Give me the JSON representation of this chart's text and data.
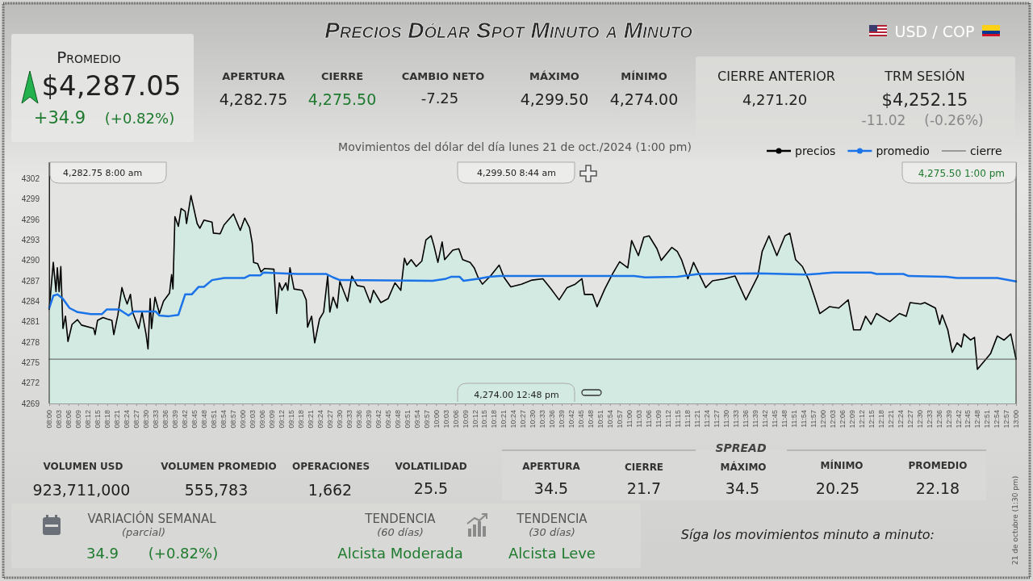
{
  "chart_data": {
    "type": "line",
    "title": "Precios Dólar Spot Minuto a Minuto",
    "subtitle": "Movimientos del dólar del día lunes 21 de oct./2024 (1:00 pm)",
    "xlim": [
      8,
      13
    ],
    "ylim": [
      4269,
      4304.4
    ],
    "yticks": [
      4269,
      4272,
      4275,
      4278,
      4281,
      4284,
      4287,
      4290,
      4293,
      4296,
      4299,
      4302
    ],
    "xticks": [
      {
        "value": 8,
        "label": "08:00"
      },
      {
        "value": 8.05,
        "label": "08:03"
      },
      {
        "value": 8.1,
        "label": "08:06"
      },
      {
        "value": 8.15,
        "label": "08:09"
      },
      {
        "value": 8.2,
        "label": "08:12"
      },
      {
        "value": 8.25,
        "label": "08:15"
      },
      {
        "value": 8.3,
        "label": "08:18"
      },
      {
        "value": 8.35,
        "label": "08:21"
      },
      {
        "value": 8.4,
        "label": "08:24"
      },
      {
        "value": 8.45,
        "label": "08:27"
      },
      {
        "value": 8.5,
        "label": "08:30"
      },
      {
        "value": 8.55,
        "label": "08:33"
      },
      {
        "value": 8.6,
        "label": "08:36"
      },
      {
        "value": 8.65,
        "label": "08:39"
      },
      {
        "value": 8.7,
        "label": "08:42"
      },
      {
        "value": 8.75,
        "label": "08:45"
      },
      {
        "value": 8.8,
        "label": "08:48"
      },
      {
        "value": 8.85,
        "label": "08:51"
      },
      {
        "value": 8.9,
        "label": "08:54"
      },
      {
        "value": 8.95,
        "label": "08:57"
      },
      {
        "value": 9,
        "label": "09:00"
      },
      {
        "value": 9.05,
        "label": "09:03"
      },
      {
        "value": 9.1,
        "label": "09:06"
      },
      {
        "value": 9.15,
        "label": "09:09"
      },
      {
        "value": 9.2,
        "label": "09:12"
      },
      {
        "value": 9.25,
        "label": "09:15"
      },
      {
        "value": 9.3,
        "label": "09:18"
      },
      {
        "value": 9.35,
        "label": "09:21"
      },
      {
        "value": 9.4,
        "label": "09:24"
      },
      {
        "value": 9.45,
        "label": "09:27"
      },
      {
        "value": 9.5,
        "label": "09:30"
      },
      {
        "value": 9.55,
        "label": "09:33"
      },
      {
        "value": 9.6,
        "label": "09:36"
      },
      {
        "value": 9.65,
        "label": "09:39"
      },
      {
        "value": 9.7,
        "label": "09:42"
      },
      {
        "value": 9.75,
        "label": "09:45"
      },
      {
        "value": 9.8,
        "label": "09:48"
      },
      {
        "value": 9.85,
        "label": "09:51"
      },
      {
        "value": 9.9,
        "label": "09:54"
      },
      {
        "value": 9.95,
        "label": "09:57"
      },
      {
        "value": 10,
        "label": "10:00"
      },
      {
        "value": 10.05,
        "label": "10:03"
      },
      {
        "value": 10.1,
        "label": "10:06"
      },
      {
        "value": 10.15,
        "label": "10:09"
      },
      {
        "value": 10.2,
        "label": "10:12"
      },
      {
        "value": 10.25,
        "label": "10:15"
      },
      {
        "value": 10.3,
        "label": "10:18"
      },
      {
        "value": 10.35,
        "label": "10:21"
      },
      {
        "value": 10.4,
        "label": "10:24"
      },
      {
        "value": 10.45,
        "label": "10:27"
      },
      {
        "value": 10.5,
        "label": "10:30"
      },
      {
        "value": 10.55,
        "label": "10:33"
      },
      {
        "value": 10.6,
        "label": "10:36"
      },
      {
        "value": 10.65,
        "label": "10:39"
      },
      {
        "value": 10.7,
        "label": "10:42"
      },
      {
        "value": 10.75,
        "label": "10:45"
      },
      {
        "value": 10.8,
        "label": "10:48"
      },
      {
        "value": 10.85,
        "label": "10:51"
      },
      {
        "value": 10.9,
        "label": "10:54"
      },
      {
        "value": 10.95,
        "label": "10:57"
      },
      {
        "value": 11,
        "label": "11:00"
      },
      {
        "value": 11.05,
        "label": "11:03"
      },
      {
        "value": 11.1,
        "label": "11:06"
      },
      {
        "value": 11.15,
        "label": "11:09"
      },
      {
        "value": 11.2,
        "label": "11:12"
      },
      {
        "value": 11.25,
        "label": "11:15"
      },
      {
        "value": 11.3,
        "label": "11:18"
      },
      {
        "value": 11.35,
        "label": "11:21"
      },
      {
        "value": 11.4,
        "label": "11:24"
      },
      {
        "value": 11.45,
        "label": "11:27"
      },
      {
        "value": 11.5,
        "label": "11:30"
      },
      {
        "value": 11.55,
        "label": "11:33"
      },
      {
        "value": 11.6,
        "label": "11:36"
      },
      {
        "value": 11.65,
        "label": "11:39"
      },
      {
        "value": 11.7,
        "label": "11:42"
      },
      {
        "value": 11.75,
        "label": "11:45"
      },
      {
        "value": 11.8,
        "label": "11:48"
      },
      {
        "value": 11.85,
        "label": "11:51"
      },
      {
        "value": 11.9,
        "label": "11:54"
      },
      {
        "value": 11.95,
        "label": "11:57"
      },
      {
        "value": 12,
        "label": "12:00"
      },
      {
        "value": 12.05,
        "label": "12:03"
      },
      {
        "value": 12.1,
        "label": "12:06"
      },
      {
        "value": 12.15,
        "label": "12:09"
      },
      {
        "value": 12.2,
        "label": "12:12"
      },
      {
        "value": 12.25,
        "label": "12:15"
      },
      {
        "value": 12.3,
        "label": "12:18"
      },
      {
        "value": 12.35,
        "label": "12:21"
      },
      {
        "value": 12.4,
        "label": "12:24"
      },
      {
        "value": 12.45,
        "label": "12:27"
      },
      {
        "value": 12.5,
        "label": "12:30"
      },
      {
        "value": 12.55,
        "label": "12:33"
      },
      {
        "value": 12.6,
        "label": "12:36"
      },
      {
        "value": 12.65,
        "label": "12:39"
      },
      {
        "value": 12.7,
        "label": "12:42"
      },
      {
        "value": 12.75,
        "label": "12:45"
      },
      {
        "value": 12.8,
        "label": "12:48"
      },
      {
        "value": 12.85,
        "label": "12:51"
      },
      {
        "value": 12.9,
        "label": "12:54"
      },
      {
        "value": 12.95,
        "label": "12:57"
      },
      {
        "value": 13,
        "label": "13:00"
      }
    ],
    "grid": false,
    "legend": "top right",
    "series": [
      {
        "name": "precios",
        "type": "area",
        "color": "#000000",
        "x": [
          8.0,
          8.021,
          8.035,
          8.042,
          8.051,
          8.06,
          8.071,
          8.084,
          8.097,
          8.118,
          8.146,
          8.167,
          8.23,
          8.237,
          8.25,
          8.278,
          8.299,
          8.324,
          8.334,
          8.355,
          8.376,
          8.39,
          8.403,
          8.42,
          8.431,
          8.463,
          8.48,
          8.501,
          8.511,
          8.522,
          8.529,
          8.547,
          8.57,
          8.591,
          8.622,
          8.633,
          8.64,
          8.65,
          8.668,
          8.682,
          8.703,
          8.71,
          8.733,
          8.765,
          8.779,
          8.8,
          8.842,
          8.849,
          8.884,
          8.904,
          8.953,
          8.988,
          9.011,
          9.036,
          9.05,
          9.057,
          9.078,
          9.095,
          9.113,
          9.162,
          9.176,
          9.19,
          9.203,
          9.224,
          9.234,
          9.245,
          9.266,
          9.308,
          9.329,
          9.336,
          9.357,
          9.373,
          9.398,
          9.419,
          9.44,
          9.451,
          9.468,
          9.489,
          9.503,
          9.543,
          9.565,
          9.593,
          9.628,
          9.66,
          9.677,
          9.715,
          9.753,
          9.788,
          9.818,
          9.837,
          9.85,
          9.872,
          9.898,
          9.927,
          9.948,
          9.975,
          9.99,
          10.01,
          10.032,
          10.045,
          10.087,
          10.118,
          10.138,
          10.177,
          10.198,
          10.218,
          10.24,
          10.282,
          10.327,
          10.352,
          10.387,
          10.442,
          10.497,
          10.553,
          10.595,
          10.637,
          10.678,
          10.72,
          10.755,
          10.768,
          10.81,
          10.833,
          10.873,
          10.915,
          10.95,
          10.992,
          11.012,
          11.047,
          11.075,
          11.102,
          11.143,
          11.165,
          11.22,
          11.248,
          11.27,
          11.303,
          11.332,
          11.395,
          11.43,
          11.492,
          11.547,
          11.603,
          11.665,
          11.687,
          11.722,
          11.763,
          11.805,
          11.83,
          11.86,
          11.895,
          11.93,
          11.958,
          11.985,
          12.035,
          12.083,
          12.132,
          12.16,
          12.195,
          12.222,
          12.25,
          12.278,
          12.347,
          12.397,
          12.432,
          12.452,
          12.507,
          12.528,
          12.583,
          12.605,
          12.618,
          12.647,
          12.67,
          12.695,
          12.717,
          12.73,
          12.765,
          12.785,
          12.8,
          12.868,
          12.903,
          12.938,
          12.973,
          13.0
        ],
        "values": [
          4282.8,
          4289.7,
          4285.4,
          4288.9,
          4285.4,
          4289.1,
          4280.0,
          4281.8,
          4278.1,
          4280.6,
          4281.3,
          4280.5,
          4280.0,
          4279.1,
          4281.2,
          4281.6,
          4281.4,
          4281.2,
          4279.1,
          4282.0,
          4286.0,
          4284.6,
          4283.6,
          4285.0,
          4282.4,
          4280.0,
          4282.4,
          4279.1,
          4277.0,
          4284.4,
          4280.0,
          4284.6,
          4282.2,
          4284.0,
          4285.2,
          4287.9,
          4285.8,
          4296.4,
          4295.0,
          4297.6,
          4297.2,
          4295.4,
          4299.5,
          4295.4,
          4294.7,
          4295.9,
          4295.6,
          4294.0,
          4293.9,
          4295.2,
          4296.8,
          4294.4,
          4296.2,
          4294.8,
          4292.5,
          4289.7,
          4289.5,
          4288.3,
          4288.8,
          4288.7,
          4282.2,
          4286.7,
          4285.6,
          4286.7,
          4285.6,
          4288.9,
          4285.8,
          4285.6,
          4284.2,
          4280.2,
          4281.8,
          4277.9,
          4281.4,
          4282.4,
          4287.7,
          4282.4,
          4284.6,
          4283.0,
          4286.9,
          4284.0,
          4287.7,
          4286.3,
          4286.1,
          4283.8,
          4285.6,
          4283.8,
          4284.4,
          4286.7,
          4285.6,
          4290.3,
          4289.3,
          4290.1,
          4289.1,
          4289.9,
          4293.0,
          4293.6,
          4292.1,
          4289.7,
          4292.7,
          4290.1,
          4291.5,
          4291.7,
          4290.1,
          4289.7,
          4288.9,
          4287.5,
          4286.5,
          4287.7,
          4289.3,
          4287.5,
          4286.1,
          4286.5,
          4287.1,
          4287.3,
          4285.8,
          4284.2,
          4286.0,
          4286.5,
          4287.3,
          4285.0,
          4285.0,
          4283.2,
          4285.8,
          4288.1,
          4289.8,
          4288.9,
          4292.9,
          4290.7,
          4293.4,
          4293.6,
          4291.7,
          4290.0,
          4291.9,
          4291.3,
          4290.1,
          4287.3,
          4289.7,
          4286.0,
          4287.0,
          4287.3,
          4287.7,
          4284.2,
          4287.7,
          4291.3,
          4293.6,
          4290.7,
          4293.6,
          4294.0,
          4290.1,
          4289.1,
          4287.0,
          4284.6,
          4282.2,
          4283.2,
          4283.0,
          4284.2,
          4279.8,
          4279.8,
          4281.8,
          4280.6,
          4282.2,
          4281.0,
          4282.2,
          4281.8,
          4283.8,
          4283.6,
          4283.8,
          4283.0,
          4280.6,
          4282.0,
          4279.8,
          4276.5,
          4277.9,
          4277.3,
          4279.2,
          4278.3,
          4278.7,
          4274.0,
          4276.3,
          4278.9,
          4278.3,
          4279.2,
          4275.5
        ]
      },
      {
        "name": "promedio",
        "color": "#1a73e8",
        "x": [
          8.0,
          8.021,
          8.042,
          8.07,
          8.105,
          8.147,
          8.215,
          8.272,
          8.298,
          8.362,
          8.41,
          8.438,
          8.55,
          8.57,
          8.618,
          8.668,
          8.703,
          8.737,
          8.772,
          8.8,
          8.842,
          8.905,
          9.008,
          9.037,
          9.092,
          9.107,
          9.203,
          9.287,
          9.433,
          9.468,
          9.503,
          9.982,
          10.052,
          10.08,
          10.122,
          10.142,
          10.218,
          10.275,
          10.33,
          11.025,
          11.082,
          11.248,
          11.36,
          11.665,
          11.917,
          12.055,
          12.25,
          12.278,
          12.417,
          12.445,
          12.64,
          12.695,
          12.903,
          13.0
        ],
        "values": [
          4283.0,
          4284.8,
          4285.0,
          4284.4,
          4283.0,
          4282.4,
          4282.1,
          4282.1,
          4282.8,
          4282.8,
          4281.9,
          4282.5,
          4282.5,
          4281.9,
          4281.8,
          4282.0,
          4285.0,
          4285.0,
          4286.1,
          4286.1,
          4287.1,
          4287.4,
          4287.4,
          4287.8,
          4287.8,
          4288.2,
          4288.1,
          4288.0,
          4288.0,
          4287.5,
          4287.1,
          4287.0,
          4287.3,
          4287.6,
          4287.6,
          4287.0,
          4287.3,
          4287.6,
          4287.7,
          4287.7,
          4287.5,
          4287.6,
          4288.0,
          4288.1,
          4287.9,
          4288.2,
          4288.2,
          4288.0,
          4288.0,
          4287.7,
          4287.6,
          4287.4,
          4287.4,
          4286.9
        ]
      },
      {
        "name": "cierre",
        "color": "#555555",
        "x": [
          8,
          13
        ],
        "values": [
          4275.5,
          4275.5
        ]
      }
    ],
    "annotations": [
      "Promedio",
      "$4,287.05",
      "+34.9",
      "(+0.82%)",
      "APERTURA",
      "4,282.75",
      "CIERRE",
      "4,275.50",
      "CAMBIO NETO",
      "-7.25",
      "MÁXIMO",
      "4,299.50",
      "MÍNIMO",
      "4,274.00",
      "CIERRE ANTERIOR",
      "4,271.20",
      "TRM SESIÓN",
      "$4,252.15",
      "-11.02",
      "(-0.26%)",
      "USD / COP",
      "VOLUMEN USD",
      "923,711,000",
      "VOLUMEN PROMEDIO",
      "555,783",
      "OPERACIONES",
      "1,662",
      "VOLATILIDAD",
      "25.5",
      "SPREAD",
      "APERTURA",
      "34.5",
      "CIERRE",
      "21.7",
      "MÁXIMO",
      "34.5",
      "MÍNIMO",
      "20.25",
      "PROMEDIO",
      "22.18",
      "VARIACIÓN SEMANAL",
      "(parcial)",
      "34.9",
      "(+0.82%)",
      "TENDENCIA",
      "(60 días)",
      "Alcista Moderada",
      "TENDENCIA",
      "(30 días)",
      "Alcista Leve",
      "Síga los movimientos minuto a minuto:",
      "21 de octubre (1:30 pm)",
      "4,282.75   8:00 am",
      "4,299.50   8:44 am",
      "4,274.00   12:48 pm",
      "4,275.50   1:00 pm"
    ]
  }
}
